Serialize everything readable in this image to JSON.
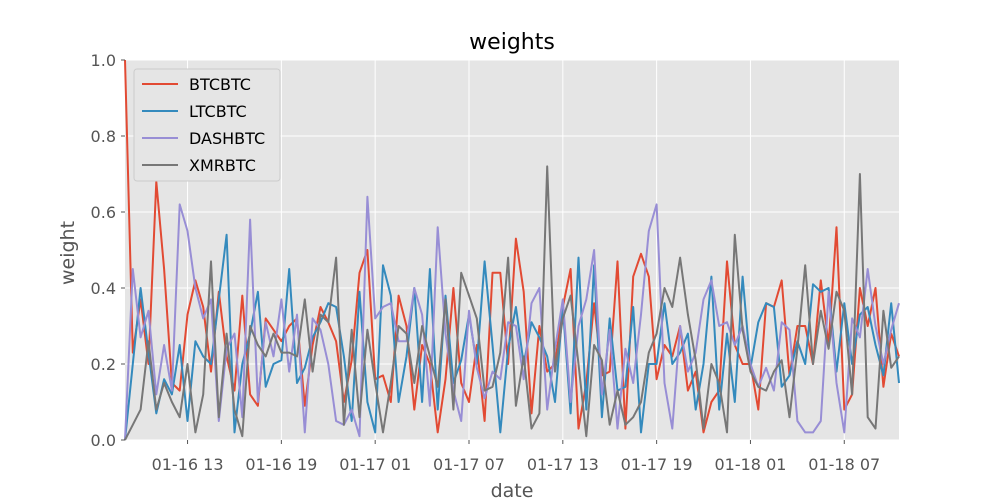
{
  "chart_data": {
    "type": "line",
    "title": "weights",
    "xlabel": "date",
    "ylabel": "weight",
    "ylim": [
      0,
      1.0
    ],
    "xlim": [
      "2018-01-16 09:00",
      "2018-01-18 10:30"
    ],
    "grid": true,
    "legend_position": "top-left",
    "colors": {
      "plot_bg": "#e5e5e5",
      "grid": "#ffffff",
      "text": "#555555"
    },
    "x_ticks": [
      {
        "value": "2018-01-16 13:00",
        "label": "01-16 13"
      },
      {
        "value": "2018-01-16 19:00",
        "label": "01-16 19"
      },
      {
        "value": "2018-01-17 01:00",
        "label": "01-17 01"
      },
      {
        "value": "2018-01-17 07:00",
        "label": "01-17 07"
      },
      {
        "value": "2018-01-17 13:00",
        "label": "01-17 13"
      },
      {
        "value": "2018-01-17 19:00",
        "label": "01-17 19"
      },
      {
        "value": "2018-01-18 01:00",
        "label": "01-18 01"
      },
      {
        "value": "2018-01-18 07:00",
        "label": "01-18 07"
      }
    ],
    "y_ticks": [
      {
        "value": 0.0,
        "label": "0.0"
      },
      {
        "value": 0.2,
        "label": "0.2"
      },
      {
        "value": 0.4,
        "label": "0.4"
      },
      {
        "value": 0.6,
        "label": "0.6"
      },
      {
        "value": 0.8,
        "label": "0.8"
      },
      {
        "value": 1.0,
        "label": "1.0"
      }
    ],
    "x": [
      "2018-01-16 09:00",
      "2018-01-16 09:30",
      "2018-01-16 10:00",
      "2018-01-16 10:30",
      "2018-01-16 11:00",
      "2018-01-16 11:30",
      "2018-01-16 12:00",
      "2018-01-16 12:30",
      "2018-01-16 13:00",
      "2018-01-16 13:30",
      "2018-01-16 14:00",
      "2018-01-16 14:30",
      "2018-01-16 15:00",
      "2018-01-16 15:30",
      "2018-01-16 16:00",
      "2018-01-16 16:30",
      "2018-01-16 17:00",
      "2018-01-16 17:30",
      "2018-01-16 18:00",
      "2018-01-16 18:30",
      "2018-01-16 19:00",
      "2018-01-16 19:30",
      "2018-01-16 20:00",
      "2018-01-16 20:30",
      "2018-01-16 21:00",
      "2018-01-16 21:30",
      "2018-01-16 22:00",
      "2018-01-16 22:30",
      "2018-01-16 23:00",
      "2018-01-16 23:30",
      "2018-01-17 00:00",
      "2018-01-17 00:30",
      "2018-01-17 01:00",
      "2018-01-17 01:30",
      "2018-01-17 02:00",
      "2018-01-17 02:30",
      "2018-01-17 03:00",
      "2018-01-17 03:30",
      "2018-01-17 04:00",
      "2018-01-17 04:30",
      "2018-01-17 05:00",
      "2018-01-17 05:30",
      "2018-01-17 06:00",
      "2018-01-17 06:30",
      "2018-01-17 07:00",
      "2018-01-17 07:30",
      "2018-01-17 08:00",
      "2018-01-17 08:30",
      "2018-01-17 09:00",
      "2018-01-17 09:30",
      "2018-01-17 10:00",
      "2018-01-17 10:30",
      "2018-01-17 11:00",
      "2018-01-17 11:30",
      "2018-01-17 12:00",
      "2018-01-17 12:30",
      "2018-01-17 13:00",
      "2018-01-17 13:30",
      "2018-01-17 14:00",
      "2018-01-17 14:30",
      "2018-01-17 15:00",
      "2018-01-17 15:30",
      "2018-01-17 16:00",
      "2018-01-17 16:30",
      "2018-01-17 17:00",
      "2018-01-17 17:30",
      "2018-01-17 18:00",
      "2018-01-17 18:30",
      "2018-01-17 19:00",
      "2018-01-17 19:30",
      "2018-01-17 20:00",
      "2018-01-17 20:30",
      "2018-01-17 21:00",
      "2018-01-17 21:30",
      "2018-01-17 22:00",
      "2018-01-17 22:30",
      "2018-01-17 23:00",
      "2018-01-17 23:30",
      "2018-01-18 00:00",
      "2018-01-18 00:30",
      "2018-01-18 01:00",
      "2018-01-18 01:30",
      "2018-01-18 02:00",
      "2018-01-18 02:30",
      "2018-01-18 03:00",
      "2018-01-18 03:30",
      "2018-01-18 04:00",
      "2018-01-18 04:30",
      "2018-01-18 05:00",
      "2018-01-18 05:30",
      "2018-01-18 06:00",
      "2018-01-18 06:30",
      "2018-01-18 07:00",
      "2018-01-18 07:30",
      "2018-01-18 08:00",
      "2018-01-18 08:30",
      "2018-01-18 09:00",
      "2018-01-18 09:30",
      "2018-01-18 10:00",
      "2018-01-18 10:30"
    ],
    "series": [
      {
        "name": "BTCBTC",
        "color": "#e24a33",
        "values": [
          1.0,
          0.23,
          0.37,
          0.2,
          0.68,
          0.45,
          0.15,
          0.13,
          0.33,
          0.42,
          0.35,
          0.18,
          0.39,
          0.22,
          0.13,
          0.38,
          0.12,
          0.09,
          0.32,
          0.29,
          0.26,
          0.3,
          0.32,
          0.09,
          0.25,
          0.35,
          0.31,
          0.26,
          0.1,
          0.21,
          0.44,
          0.5,
          0.16,
          0.17,
          0.1,
          0.38,
          0.3,
          0.08,
          0.25,
          0.2,
          0.02,
          0.16,
          0.4,
          0.15,
          0.1,
          0.25,
          0.05,
          0.44,
          0.44,
          0.2,
          0.53,
          0.39,
          0.07,
          0.3,
          0.18,
          0.2,
          0.35,
          0.45,
          0.03,
          0.15,
          0.36,
          0.17,
          0.18,
          0.47,
          0.03,
          0.43,
          0.49,
          0.43,
          0.16,
          0.25,
          0.22,
          0.3,
          0.13,
          0.18,
          0.02,
          0.1,
          0.13,
          0.47,
          0.25,
          0.2,
          0.2,
          0.08,
          0.36,
          0.35,
          0.42,
          0.17,
          0.3,
          0.3,
          0.2,
          0.42,
          0.25,
          0.56,
          0.08,
          0.12,
          0.4,
          0.3,
          0.4,
          0.14,
          0.28,
          0.22
        ]
      },
      {
        "name": "LTCBTC",
        "color": "#348abd",
        "values": [
          0.0,
          0.2,
          0.4,
          0.23,
          0.07,
          0.16,
          0.12,
          0.25,
          0.05,
          0.26,
          0.22,
          0.2,
          0.37,
          0.54,
          0.02,
          0.2,
          0.28,
          0.39,
          0.14,
          0.2,
          0.21,
          0.45,
          0.15,
          0.19,
          0.27,
          0.31,
          0.36,
          0.35,
          0.22,
          0.05,
          0.39,
          0.1,
          0.02,
          0.46,
          0.38,
          0.1,
          0.22,
          0.4,
          0.1,
          0.45,
          0.08,
          0.38,
          0.15,
          0.21,
          0.33,
          0.2,
          0.47,
          0.25,
          0.02,
          0.24,
          0.35,
          0.2,
          0.31,
          0.27,
          0.22,
          0.1,
          0.35,
          0.07,
          0.48,
          0.08,
          0.46,
          0.06,
          0.32,
          0.13,
          0.14,
          0.35,
          0.02,
          0.2,
          0.2,
          0.36,
          0.2,
          0.23,
          0.28,
          0.08,
          0.2,
          0.43,
          0.08,
          0.28,
          0.1,
          0.43,
          0.19,
          0.31,
          0.36,
          0.35,
          0.14,
          0.17,
          0.26,
          0.2,
          0.41,
          0.39,
          0.4,
          0.18,
          0.36,
          0.2,
          0.33,
          0.35,
          0.25,
          0.17,
          0.36,
          0.15
        ]
      },
      {
        "name": "DASHBTC",
        "color": "#988ed5",
        "values": [
          0.0,
          0.45,
          0.27,
          0.34,
          0.12,
          0.25,
          0.13,
          0.62,
          0.55,
          0.4,
          0.32,
          0.37,
          0.05,
          0.24,
          0.28,
          0.06,
          0.58,
          0.1,
          0.31,
          0.22,
          0.37,
          0.18,
          0.33,
          0.02,
          0.32,
          0.29,
          0.2,
          0.05,
          0.04,
          0.08,
          0.01,
          0.64,
          0.32,
          0.35,
          0.36,
          0.26,
          0.26,
          0.4,
          0.33,
          0.09,
          0.56,
          0.28,
          0.13,
          0.05,
          0.34,
          0.19,
          0.11,
          0.18,
          0.16,
          0.31,
          0.3,
          0.16,
          0.36,
          0.4,
          0.08,
          0.24,
          0.37,
          0.1,
          0.3,
          0.37,
          0.5,
          0.12,
          0.29,
          0.03,
          0.24,
          0.15,
          0.33,
          0.55,
          0.62,
          0.15,
          0.03,
          0.3,
          0.18,
          0.23,
          0.37,
          0.42,
          0.3,
          0.31,
          0.25,
          0.3,
          0.2,
          0.14,
          0.19,
          0.13,
          0.31,
          0.29,
          0.05,
          0.02,
          0.02,
          0.05,
          0.39,
          0.15,
          0.02,
          0.32,
          0.27,
          0.45,
          0.3,
          0.2,
          0.29,
          0.36
        ]
      },
      {
        "name": "XMRBTC",
        "color": "#777777",
        "values": [
          0.0,
          0.04,
          0.08,
          0.26,
          0.08,
          0.15,
          0.1,
          0.06,
          0.2,
          0.02,
          0.12,
          0.47,
          0.06,
          0.28,
          0.08,
          0.01,
          0.3,
          0.25,
          0.22,
          0.28,
          0.23,
          0.23,
          0.22,
          0.37,
          0.18,
          0.33,
          0.31,
          0.48,
          0.04,
          0.29,
          0.06,
          0.29,
          0.15,
          0.02,
          0.15,
          0.3,
          0.28,
          0.15,
          0.3,
          0.22,
          0.14,
          0.37,
          0.08,
          0.44,
          0.38,
          0.32,
          0.13,
          0.14,
          0.23,
          0.48,
          0.09,
          0.22,
          0.03,
          0.07,
          0.72,
          0.18,
          0.32,
          0.38,
          0.2,
          0.01,
          0.25,
          0.21,
          0.04,
          0.13,
          0.04,
          0.06,
          0.1,
          0.23,
          0.28,
          0.4,
          0.35,
          0.48,
          0.33,
          0.21,
          0.03,
          0.2,
          0.15,
          0.02,
          0.54,
          0.29,
          0.18,
          0.14,
          0.13,
          0.18,
          0.21,
          0.06,
          0.24,
          0.46,
          0.2,
          0.34,
          0.24,
          0.39,
          0.34,
          0.12,
          0.7,
          0.06,
          0.03,
          0.34,
          0.19,
          0.22
        ]
      }
    ]
  }
}
